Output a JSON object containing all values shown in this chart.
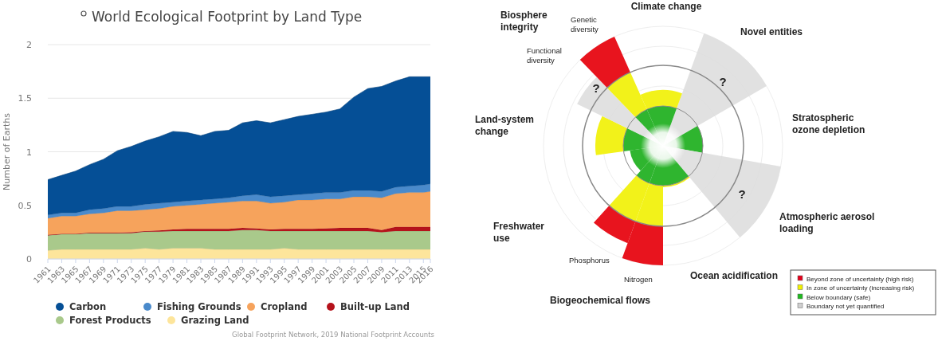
{
  "chart_data": [
    {
      "type": "area",
      "title": "World Ecological Footprint by Land Type",
      "ylabel": "Number of Earths",
      "stacked": true,
      "grid": "y",
      "legend": "bottom",
      "annotations": [
        "Global Footprint Network, 2019 National Footprint Accounts"
      ],
      "x": [
        1961,
        1963,
        1965,
        1967,
        1969,
        1971,
        1973,
        1975,
        1977,
        1979,
        1981,
        1983,
        1985,
        1987,
        1989,
        1991,
        1993,
        1995,
        1997,
        1999,
        2001,
        2003,
        2005,
        2007,
        2009,
        2011,
        2013,
        2015,
        2016
      ],
      "xlim": [
        1961,
        2016
      ],
      "xticks": [
        1961,
        1963,
        1965,
        1967,
        1969,
        1971,
        1973,
        1975,
        1977,
        1979,
        1981,
        1983,
        1985,
        1987,
        1989,
        1991,
        1993,
        1995,
        1997,
        1999,
        2001,
        2003,
        2005,
        2007,
        2009,
        2011,
        2013,
        2015,
        2016
      ],
      "ylim": [
        0,
        2
      ],
      "yticks": [
        0,
        0.5,
        1,
        1.5,
        2
      ],
      "series": [
        {
          "name": "Grazing Land",
          "color": "#fde59b",
          "values": [
            0.08,
            0.09,
            0.09,
            0.09,
            0.09,
            0.09,
            0.09,
            0.1,
            0.09,
            0.1,
            0.1,
            0.1,
            0.09,
            0.09,
            0.09,
            0.09,
            0.09,
            0.1,
            0.09,
            0.09,
            0.09,
            0.09,
            0.09,
            0.09,
            0.09,
            0.09,
            0.09,
            0.09,
            0.09
          ]
        },
        {
          "name": "Forest Products",
          "color": "#a9c98b",
          "values": [
            0.14,
            0.14,
            0.14,
            0.15,
            0.15,
            0.15,
            0.15,
            0.155,
            0.165,
            0.16,
            0.16,
            0.16,
            0.17,
            0.17,
            0.18,
            0.18,
            0.17,
            0.16,
            0.17,
            0.17,
            0.17,
            0.17,
            0.17,
            0.17,
            0.16,
            0.17,
            0.17,
            0.17,
            0.17
          ]
        },
        {
          "name": "Built-up Land",
          "color": "#b5121b",
          "values": [
            0.005,
            0.005,
            0.005,
            0.005,
            0.005,
            0.005,
            0.01,
            0.005,
            0.01,
            0.015,
            0.02,
            0.02,
            0.02,
            0.02,
            0.02,
            0.015,
            0.015,
            0.02,
            0.02,
            0.02,
            0.025,
            0.03,
            0.03,
            0.03,
            0.02,
            0.04,
            0.04,
            0.04,
            0.04
          ]
        },
        {
          "name": "Cropland",
          "color": "#f6a35c",
          "values": [
            0.155,
            0.165,
            0.165,
            0.175,
            0.185,
            0.205,
            0.2,
            0.2,
            0.205,
            0.215,
            0.22,
            0.23,
            0.24,
            0.25,
            0.25,
            0.255,
            0.245,
            0.25,
            0.27,
            0.27,
            0.275,
            0.27,
            0.29,
            0.29,
            0.3,
            0.31,
            0.32,
            0.32,
            0.33
          ]
        },
        {
          "name": "Fishing Grounds",
          "color": "#4a8acb",
          "values": [
            0.03,
            0.03,
            0.03,
            0.04,
            0.04,
            0.04,
            0.04,
            0.05,
            0.05,
            0.04,
            0.04,
            0.04,
            0.04,
            0.04,
            0.05,
            0.06,
            0.06,
            0.06,
            0.05,
            0.06,
            0.06,
            0.06,
            0.06,
            0.06,
            0.06,
            0.06,
            0.06,
            0.07,
            0.07
          ]
        },
        {
          "name": "Carbon",
          "color": "#054f96",
          "values": [
            0.33,
            0.35,
            0.39,
            0.42,
            0.46,
            0.52,
            0.56,
            0.59,
            0.62,
            0.66,
            0.64,
            0.6,
            0.63,
            0.63,
            0.68,
            0.69,
            0.69,
            0.71,
            0.73,
            0.74,
            0.75,
            0.78,
            0.87,
            0.95,
            0.98,
            0.99,
            1.02,
            1.01,
            1.0
          ]
        }
      ]
    },
    {
      "type": "other",
      "annotations": [
        "Climate change",
        "Biosphere integrity",
        "Genetic diversity",
        "Functional diversity",
        "Novel entities",
        "Stratospheric ozone depletion",
        "Land-system change",
        "Atmospheric aerosol loading",
        "Freshwater use",
        "Phosphorus",
        "Nitrogen",
        "Ocean acidification",
        "Biogeochemical flows",
        "?",
        "?",
        "?",
        "Beyond zone of uncertainty (high risk)",
        "In zone of uncertainty (increasing risk)",
        "Below boundary (safe)",
        "Boundary not yet quantified"
      ]
    }
  ]
}
